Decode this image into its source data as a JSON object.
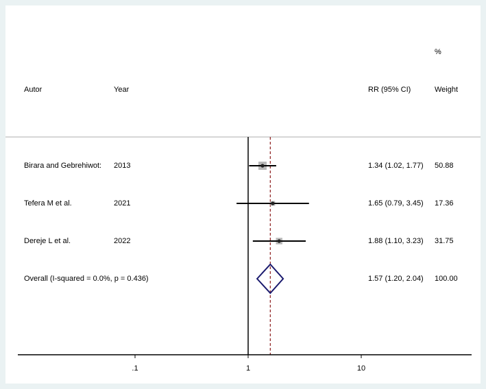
{
  "header": {
    "col_study": "Autor",
    "col_year": "Year",
    "col_rr": "RR (95% CI)",
    "col_weight_top": "%",
    "col_weight": "Weight"
  },
  "chart_data": {
    "type": "forest",
    "x_scale": "log",
    "xlim": [
      0.03,
      45
    ],
    "x_ticks": [
      {
        "value": 0.1,
        "label": ".1"
      },
      {
        "value": 1,
        "label": "1"
      },
      {
        "value": 10,
        "label": "10"
      }
    ],
    "null_line": 1,
    "pooled_line": 1.57,
    "studies": [
      {
        "label": "Birara and Gebrehiwot:",
        "year": "2013",
        "rr": 1.34,
        "lower": 1.02,
        "upper": 1.77,
        "rr_text": "1.34 (1.02, 1.77)",
        "weight": 50.88,
        "weight_text": "50.88"
      },
      {
        "label": "Tefera M et al.",
        "year": "2021",
        "rr": 1.65,
        "lower": 0.79,
        "upper": 3.45,
        "rr_text": "1.65 (0.79, 3.45)",
        "weight": 17.36,
        "weight_text": "17.36"
      },
      {
        "label": "Dereje L et al.",
        "year": "2022",
        "rr": 1.88,
        "lower": 1.1,
        "upper": 3.23,
        "rr_text": "1.88 (1.10, 3.23)",
        "weight": 31.75,
        "weight_text": "31.75"
      }
    ],
    "overall": {
      "label": "Overall  (I-squared = 0.0%, p = 0.436)",
      "rr": 1.57,
      "lower": 1.2,
      "upper": 2.04,
      "rr_text": "1.57 (1.20, 2.04)",
      "weight_text": "100.00"
    },
    "colors": {
      "background": "#eaf2f3",
      "panel": "#ffffff",
      "separator": "#c8c8c8",
      "ci_line": "#000000",
      "weight_box": "#b9b9b9",
      "point": "#222222",
      "diamond": "#1a1a6e",
      "pooled_line": "#8b1a1a"
    }
  }
}
